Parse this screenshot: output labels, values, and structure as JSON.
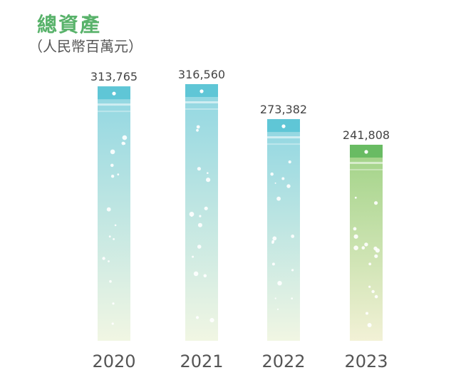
{
  "title": "總資產",
  "subtitle": "（人民幣百萬元）",
  "colors": {
    "title": "#58b26a",
    "teal_cap": "#5fc6d6",
    "teal_body_top": "#8fd6e2",
    "green_cap": "#69bb63",
    "green_body_top": "#9fd285",
    "body_bottom": "#f1f6e3",
    "body_bottom_2023": "#f2f1d6"
  },
  "chart_data": {
    "type": "bar",
    "title": "總資產",
    "subtitle": "（人民幣百萬元）",
    "ylabel": "人民幣百萬元",
    "categories": [
      "2020",
      "2021",
      "2022",
      "2023"
    ],
    "values": [
      313765,
      316560,
      273382,
      241808
    ],
    "value_labels": [
      "313,765",
      "316,560",
      "273,382",
      "241,808"
    ],
    "highlight_category": "2023",
    "grid": false,
    "legend": "none"
  }
}
